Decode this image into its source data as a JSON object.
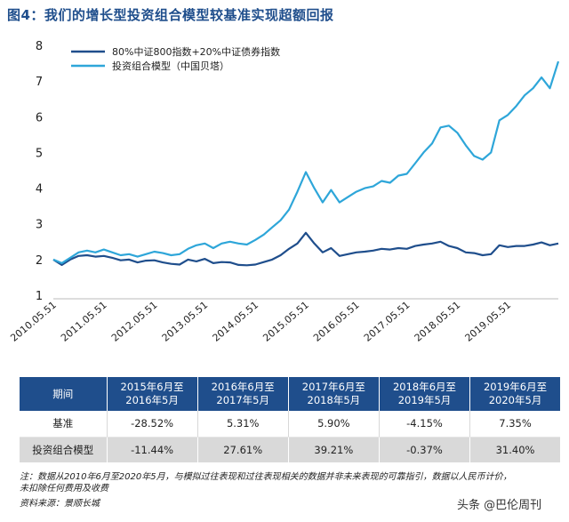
{
  "title": "图4：我们的增长型投资组合模型较基准实现超额回报",
  "chart_data": {
    "type": "line",
    "title": "",
    "xlabel": "",
    "ylabel": "",
    "ylim": [
      1,
      8
    ],
    "yticks": [
      "1",
      "2",
      "3",
      "4",
      "5",
      "6",
      "7",
      "8"
    ],
    "xlim": [
      "2010.05",
      "2020.05"
    ],
    "xticks": [
      "2010.05.51",
      "2011.05.51",
      "2012.05.51",
      "2013.05.51",
      "2014.05.51",
      "2015.05.51",
      "2016.05.51",
      "2017.05.51",
      "2018.05.51",
      "2019.05.51"
    ],
    "legend_position": "top-left",
    "grid": false,
    "series": [
      {
        "name": "80%中证800指数+20%中证债券指数",
        "color": "#1f4e8c",
        "points": [
          [
            "2010.05",
            2.0
          ],
          [
            "2010.07",
            1.85
          ],
          [
            "2010.09",
            2.0
          ],
          [
            "2010.11",
            2.1
          ],
          [
            "2011.01",
            2.12
          ],
          [
            "2011.03",
            2.08
          ],
          [
            "2011.05",
            2.1
          ],
          [
            "2011.07",
            2.05
          ],
          [
            "2011.09",
            1.98
          ],
          [
            "2011.11",
            2.0
          ],
          [
            "2012.01",
            1.92
          ],
          [
            "2012.03",
            1.97
          ],
          [
            "2012.05",
            1.98
          ],
          [
            "2012.07",
            1.92
          ],
          [
            "2012.09",
            1.88
          ],
          [
            "2012.11",
            1.86
          ],
          [
            "2013.01",
            2.0
          ],
          [
            "2013.03",
            1.95
          ],
          [
            "2013.05",
            2.02
          ],
          [
            "2013.07",
            1.9
          ],
          [
            "2013.09",
            1.93
          ],
          [
            "2013.11",
            1.92
          ],
          [
            "2014.01",
            1.85
          ],
          [
            "2014.03",
            1.84
          ],
          [
            "2014.05",
            1.86
          ],
          [
            "2014.07",
            1.93
          ],
          [
            "2014.09",
            2.0
          ],
          [
            "2014.11",
            2.12
          ],
          [
            "2015.01",
            2.3
          ],
          [
            "2015.03",
            2.45
          ],
          [
            "2015.05",
            2.75
          ],
          [
            "2015.07",
            2.45
          ],
          [
            "2015.09",
            2.2
          ],
          [
            "2015.11",
            2.32
          ],
          [
            "2016.01",
            2.1
          ],
          [
            "2016.03",
            2.15
          ],
          [
            "2016.05",
            2.2
          ],
          [
            "2016.07",
            2.22
          ],
          [
            "2016.09",
            2.25
          ],
          [
            "2016.11",
            2.3
          ],
          [
            "2017.01",
            2.28
          ],
          [
            "2017.03",
            2.32
          ],
          [
            "2017.05",
            2.3
          ],
          [
            "2017.07",
            2.38
          ],
          [
            "2017.09",
            2.42
          ],
          [
            "2017.11",
            2.45
          ],
          [
            "2018.01",
            2.5
          ],
          [
            "2018.03",
            2.38
          ],
          [
            "2018.05",
            2.32
          ],
          [
            "2018.07",
            2.2
          ],
          [
            "2018.09",
            2.18
          ],
          [
            "2018.11",
            2.12
          ],
          [
            "2019.01",
            2.15
          ],
          [
            "2019.03",
            2.4
          ],
          [
            "2019.05",
            2.35
          ],
          [
            "2019.07",
            2.38
          ],
          [
            "2019.09",
            2.38
          ],
          [
            "2019.11",
            2.42
          ],
          [
            "2020.01",
            2.48
          ],
          [
            "2020.03",
            2.4
          ],
          [
            "2020.05",
            2.45
          ]
        ]
      },
      {
        "name": "投资组合模型（中国贝塔）",
        "color": "#2ea6d9",
        "points": [
          [
            "2010.05",
            2.0
          ],
          [
            "2010.07",
            1.9
          ],
          [
            "2010.09",
            2.05
          ],
          [
            "2010.11",
            2.2
          ],
          [
            "2011.01",
            2.25
          ],
          [
            "2011.03",
            2.2
          ],
          [
            "2011.05",
            2.28
          ],
          [
            "2011.07",
            2.2
          ],
          [
            "2011.09",
            2.12
          ],
          [
            "2011.11",
            2.15
          ],
          [
            "2012.01",
            2.08
          ],
          [
            "2012.03",
            2.15
          ],
          [
            "2012.05",
            2.22
          ],
          [
            "2012.07",
            2.18
          ],
          [
            "2012.09",
            2.12
          ],
          [
            "2012.11",
            2.15
          ],
          [
            "2013.01",
            2.3
          ],
          [
            "2013.03",
            2.4
          ],
          [
            "2013.05",
            2.45
          ],
          [
            "2013.07",
            2.32
          ],
          [
            "2013.09",
            2.45
          ],
          [
            "2013.11",
            2.5
          ],
          [
            "2014.01",
            2.45
          ],
          [
            "2014.03",
            2.42
          ],
          [
            "2014.05",
            2.55
          ],
          [
            "2014.07",
            2.7
          ],
          [
            "2014.09",
            2.9
          ],
          [
            "2014.11",
            3.1
          ],
          [
            "2015.01",
            3.4
          ],
          [
            "2015.03",
            3.9
          ],
          [
            "2015.05",
            4.45
          ],
          [
            "2015.07",
            4.0
          ],
          [
            "2015.09",
            3.6
          ],
          [
            "2015.11",
            3.95
          ],
          [
            "2016.01",
            3.6
          ],
          [
            "2016.03",
            3.75
          ],
          [
            "2016.05",
            3.9
          ],
          [
            "2016.07",
            4.0
          ],
          [
            "2016.09",
            4.05
          ],
          [
            "2016.11",
            4.2
          ],
          [
            "2017.01",
            4.15
          ],
          [
            "2017.03",
            4.35
          ],
          [
            "2017.05",
            4.4
          ],
          [
            "2017.07",
            4.7
          ],
          [
            "2017.09",
            5.0
          ],
          [
            "2017.11",
            5.25
          ],
          [
            "2018.01",
            5.7
          ],
          [
            "2018.03",
            5.75
          ],
          [
            "2018.05",
            5.55
          ],
          [
            "2018.07",
            5.2
          ],
          [
            "2018.09",
            4.9
          ],
          [
            "2018.11",
            4.8
          ],
          [
            "2019.01",
            5.0
          ],
          [
            "2019.03",
            5.9
          ],
          [
            "2019.05",
            6.05
          ],
          [
            "2019.07",
            6.3
          ],
          [
            "2019.09",
            6.6
          ],
          [
            "2019.11",
            6.8
          ],
          [
            "2020.01",
            7.1
          ],
          [
            "2020.03",
            6.8
          ],
          [
            "2020.05",
            7.55
          ]
        ]
      }
    ]
  },
  "table": {
    "headers": [
      "期间",
      "2015年6月至\n2016年5月",
      "2016年6月至\n2017年5月",
      "2017年6月至\n2018年5月",
      "2018年6月至\n2019年5月",
      "2019年6月至\n2020年5月"
    ],
    "rows": [
      [
        "基准",
        "-28.52%",
        "5.31%",
        "5.90%",
        "-4.15%",
        "7.35%"
      ],
      [
        "投资组合模型",
        "-11.44%",
        "27.61%",
        "39.21%",
        "-0.37%",
        "31.40%"
      ]
    ]
  },
  "note": "注：数据从2010年6月至2020年5月，与模拟过往表现和过往表现相关的数据并非未来表现的可靠指引，数据以人民币计价，\n未扣除任何费用及收费",
  "source": "资料来源：景顺长城",
  "watermark": "头条 @巴伦周刊"
}
